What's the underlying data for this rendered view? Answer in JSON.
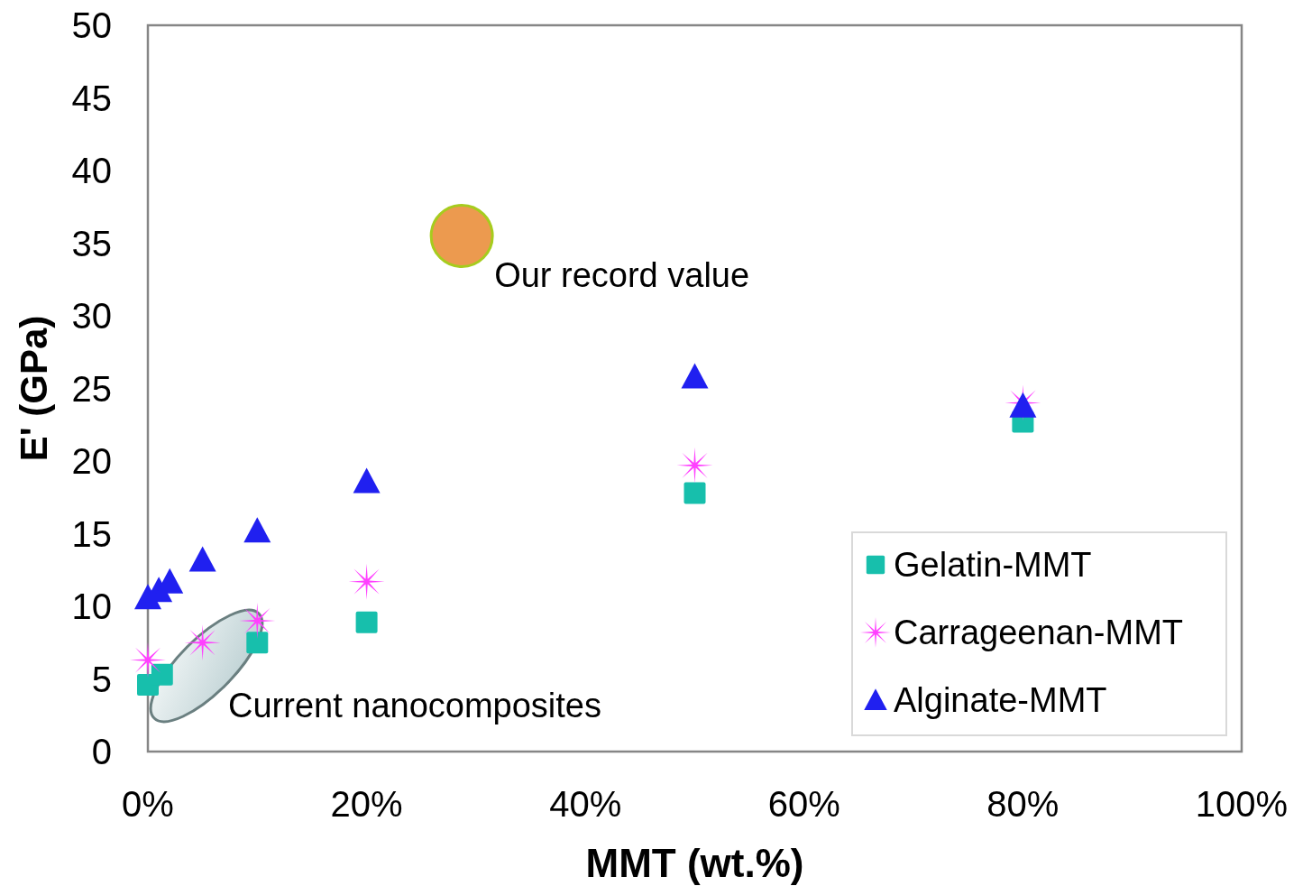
{
  "chart_data": {
    "type": "scatter",
    "xlabel": "MMT (wt.%)",
    "ylabel": "E' (GPa)",
    "xlim": [
      0,
      100
    ],
    "xticks": [
      {
        "value": 0,
        "label": "0%"
      },
      {
        "value": 20,
        "label": "20%"
      },
      {
        "value": 40,
        "label": "40%"
      },
      {
        "value": 60,
        "label": "60%"
      },
      {
        "value": 80,
        "label": "80%"
      },
      {
        "value": 100,
        "label": "100%"
      }
    ],
    "ylim": [
      0,
      50
    ],
    "yticks": [
      0,
      5,
      10,
      15,
      20,
      25,
      30,
      35,
      40,
      45,
      50
    ],
    "grid": false,
    "legend": "bottom right",
    "annotations": [
      {
        "text": "Our record value",
        "x": 28.7,
        "y": 35.5
      },
      "Current nanocomposites"
    ],
    "series": [
      {
        "name": "Gelatin-MMT",
        "color": "#17bfac",
        "marker": "square",
        "x": [
          0,
          1.3,
          10,
          20,
          50,
          80
        ],
        "values": [
          4.6,
          5.3,
          7.5,
          8.9,
          17.8,
          22.7
        ]
      },
      {
        "name": "Carrageenan-MMT",
        "color": "#ff40ff",
        "marker": "star",
        "x": [
          0,
          5,
          10,
          20,
          50,
          80
        ],
        "values": [
          6.3,
          7.5,
          9.0,
          11.7,
          19.7,
          24.0
        ]
      },
      {
        "name": "Alginate-MMT",
        "color": "#2020f0",
        "marker": "triangle",
        "x": [
          0,
          1,
          2,
          5,
          10,
          20,
          50,
          80
        ],
        "values": [
          10.6,
          11.1,
          11.7,
          13.2,
          15.2,
          18.6,
          25.8,
          23.8
        ]
      },
      {
        "color": "#ec9a4f",
        "marker": "circle",
        "x": [
          28.7
        ],
        "values": [
          35.5
        ]
      }
    ]
  }
}
